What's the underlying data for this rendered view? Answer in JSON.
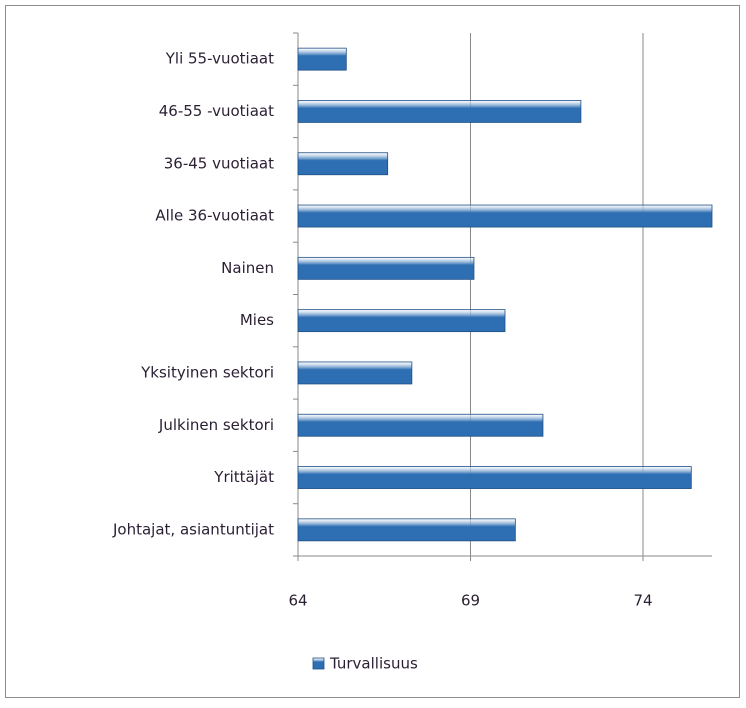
{
  "chart_data": {
    "type": "bar",
    "orientation": "horizontal",
    "categories": [
      "Yli 55-vuotiaat",
      "46-55 -vuotiaat",
      "36-45 vuotiaat",
      "Alle 36-vuotiaat",
      "Nainen",
      "Mies",
      "Yksityinen sektori",
      "Julkinen sektori",
      "Yrittäjät",
      "Johtajat,  asiantuntijat"
    ],
    "series": [
      {
        "name": "Turvallisuus",
        "color": "#2e6fb3",
        "values": [
          65.4,
          72.2,
          66.6,
          76,
          69.1,
          70.0,
          67.3,
          71.1,
          75.4,
          70.3
        ]
      }
    ],
    "xlim": [
      64,
      76
    ],
    "xticks": [
      64,
      69,
      74
    ],
    "grid": true,
    "legend": "bottom"
  }
}
